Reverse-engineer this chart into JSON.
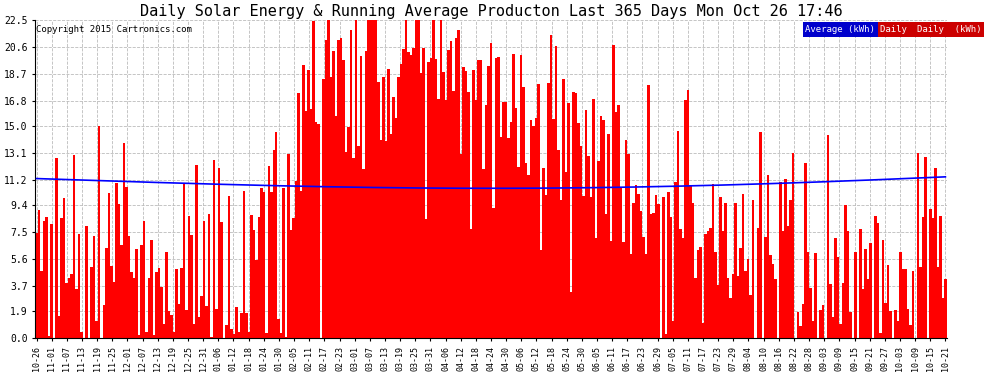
{
  "title": "Daily Solar Energy & Running Average Producton Last 365 Days Mon Oct 26 17:46",
  "copyright": "Copyright 2015 Cartronics.com",
  "legend_labels": [
    "Average (kWh)",
    "Daily (kWh)"
  ],
  "bar_color": "#ff0000",
  "line_color": "#0000ff",
  "legend_avg_color": "#0000cc",
  "legend_daily_color": "#cc0000",
  "background_color": "#ffffff",
  "grid_color": "#bbbbbb",
  "yticks": [
    0.0,
    1.9,
    3.7,
    5.6,
    7.5,
    9.4,
    11.2,
    13.1,
    15.0,
    16.8,
    18.7,
    20.6,
    22.5
  ],
  "ylim": [
    0,
    22.5
  ],
  "title_fontsize": 11,
  "copyright_fontsize": 6.5,
  "n_days": 365,
  "x_labels": [
    "10-26",
    "11-01",
    "11-07",
    "11-13",
    "11-19",
    "11-25",
    "12-01",
    "12-07",
    "12-13",
    "12-19",
    "12-25",
    "12-31",
    "01-06",
    "01-12",
    "01-18",
    "01-24",
    "01-30",
    "02-05",
    "02-11",
    "02-17",
    "02-23",
    "03-01",
    "03-07",
    "03-13",
    "03-19",
    "03-25",
    "03-31",
    "04-06",
    "04-12",
    "04-18",
    "04-24",
    "04-30",
    "05-06",
    "05-12",
    "05-18",
    "05-24",
    "05-30",
    "06-05",
    "06-11",
    "06-17",
    "06-23",
    "06-29",
    "07-05",
    "07-11",
    "07-17",
    "07-23",
    "07-29",
    "08-04",
    "08-10",
    "08-16",
    "08-22",
    "08-28",
    "09-03",
    "09-09",
    "09-15",
    "09-21",
    "09-27",
    "10-03",
    "10-09",
    "10-15",
    "10-21"
  ]
}
